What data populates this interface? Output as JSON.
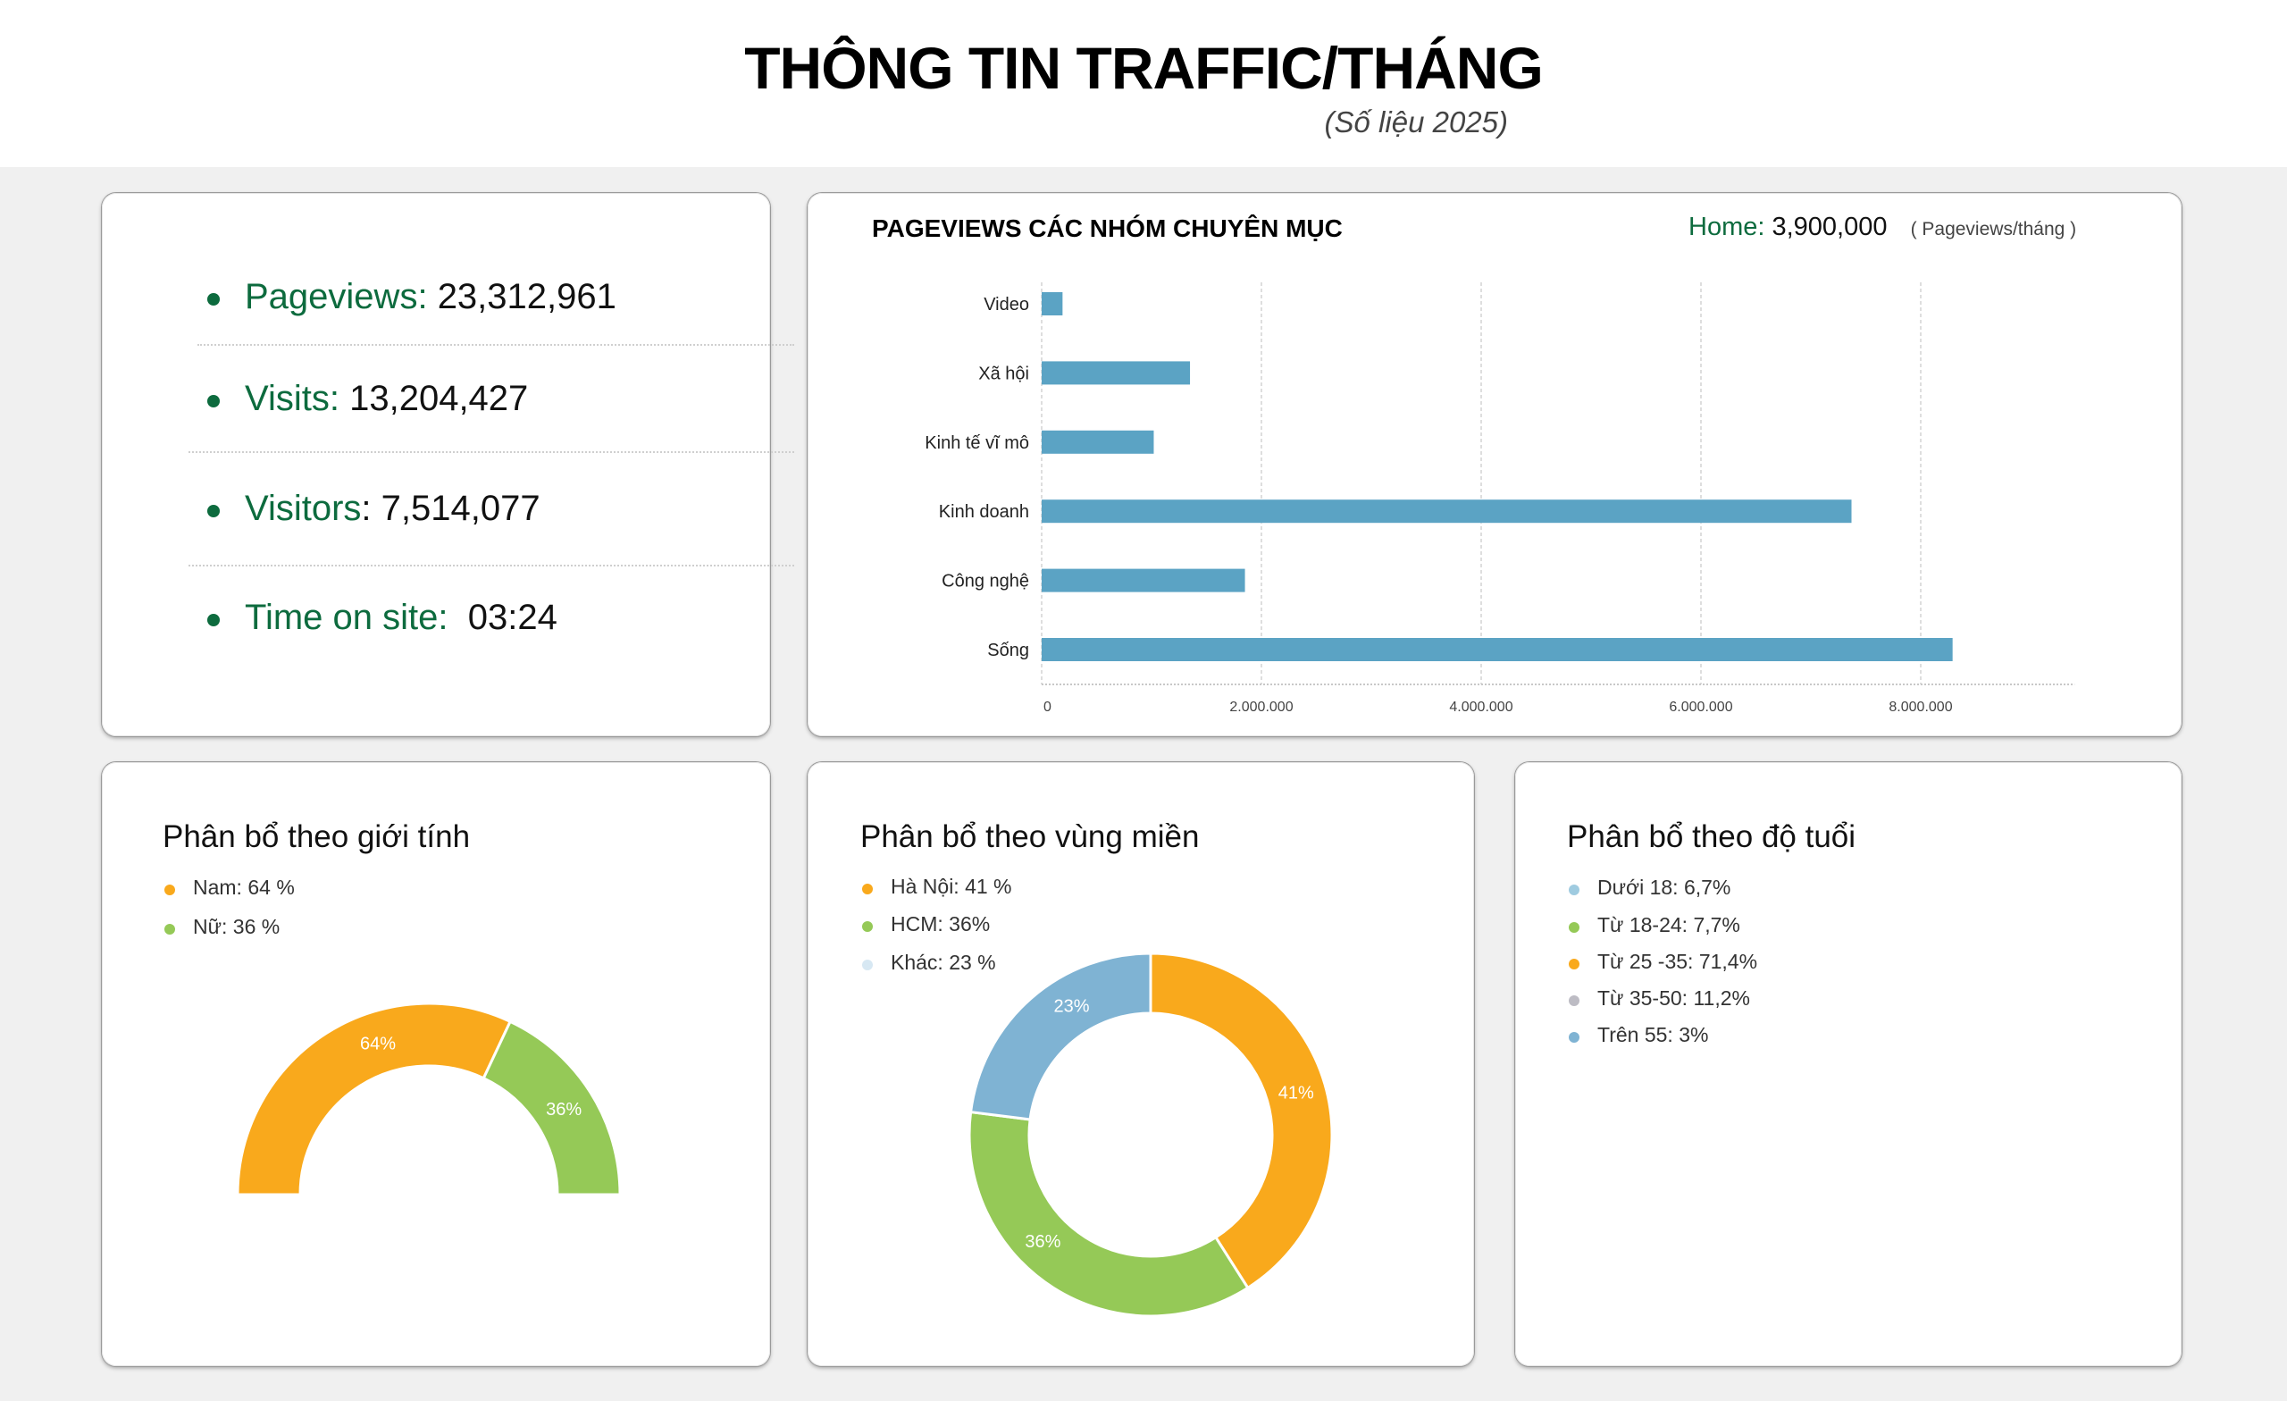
{
  "header": {
    "title": "THÔNG TIN TRAFFIC/THÁNG",
    "subtitle": "(Số liệu 2025)"
  },
  "summary": {
    "items": [
      {
        "label": "Pageviews:",
        "value": "23,312,961"
      },
      {
        "label": "Visits:",
        "value": "13,204,427"
      },
      {
        "label": "Visitors",
        "value": ": 7,514,077"
      },
      {
        "label": "Time on site:",
        "value": "03:24"
      }
    ]
  },
  "colors": {
    "accent_green": "#0d6b3e",
    "bar": "#5ba3c4",
    "orange": "#f9a91c",
    "green": "#95c957",
    "blue": "#7fb3d3",
    "light_blue": "#9fcbe0",
    "light_gray_blue": "#d7e8f3",
    "gray": "#bdbcc4"
  },
  "chart_data": [
    {
      "type": "bar",
      "orientation": "horizontal",
      "title": "PAGEVIEWS CÁC NHÓM CHUYÊN MỤC",
      "annotation": {
        "label": "Home:",
        "value": "3,900,000",
        "unit": "( Pageviews/tháng )"
      },
      "categories": [
        "Video",
        "Xã hội",
        "Kinh tế vĩ mô",
        "Kinh doanh",
        "Công nghệ",
        "Sống"
      ],
      "values": [
        190000,
        1350000,
        1020000,
        7370000,
        1850000,
        8290000
      ],
      "xlim": [
        0,
        9400000
      ],
      "xticks": [
        0,
        2000000,
        4000000,
        6000000,
        8000000
      ],
      "xtick_labels": [
        "0",
        "2.000.000",
        "4.000.000",
        "6.000.000",
        "8.000.000"
      ],
      "grid": true,
      "xlabel": "",
      "ylabel": ""
    },
    {
      "type": "pie",
      "variant": "semi-donut",
      "title": "Phân bổ theo giới tính",
      "legend": [
        "Nam: 64 %",
        "Nữ: 36 %"
      ],
      "slices": [
        {
          "name": "Nam",
          "value": 64,
          "label": "64%",
          "color": "#f9a91c"
        },
        {
          "name": "Nữ",
          "value": 36,
          "label": "36%",
          "color": "#95c957"
        }
      ],
      "legend_position": "top-left"
    },
    {
      "type": "pie",
      "variant": "donut",
      "title": "Phân bổ theo vùng miền",
      "legend": [
        "Hà Nội: 41 %",
        "HCM: 36%",
        "Khác: 23 %"
      ],
      "slices": [
        {
          "name": "Hà Nội",
          "value": 41,
          "label": "41%",
          "color": "#f9a91c"
        },
        {
          "name": "HCM",
          "value": 36,
          "label": "36%",
          "color": "#95c957"
        },
        {
          "name": "Khác",
          "value": 23,
          "label": "23%",
          "color": "#7fb3d3"
        }
      ],
      "legend_colors": [
        "#f9a91c",
        "#95c957",
        "#d7e8f3"
      ],
      "legend_position": "top-left"
    },
    {
      "type": "table",
      "title": "Phân bổ theo độ tuổi",
      "legend": [
        {
          "text": "Dưới 18: 6,7%",
          "value": 6.7,
          "color": "#9fcbe0"
        },
        {
          "text": "Từ 18-24: 7,7%",
          "value": 7.7,
          "color": "#95c957"
        },
        {
          "text": "Từ 25 -35: 71,4%",
          "value": 71.4,
          "color": "#f9a91c"
        },
        {
          "text": "Từ 35-50: 11,2%",
          "value": 11.2,
          "color": "#bdbcc4"
        },
        {
          "text": "Trên 55: 3%",
          "value": 3,
          "color": "#7fb3d3"
        }
      ]
    }
  ]
}
